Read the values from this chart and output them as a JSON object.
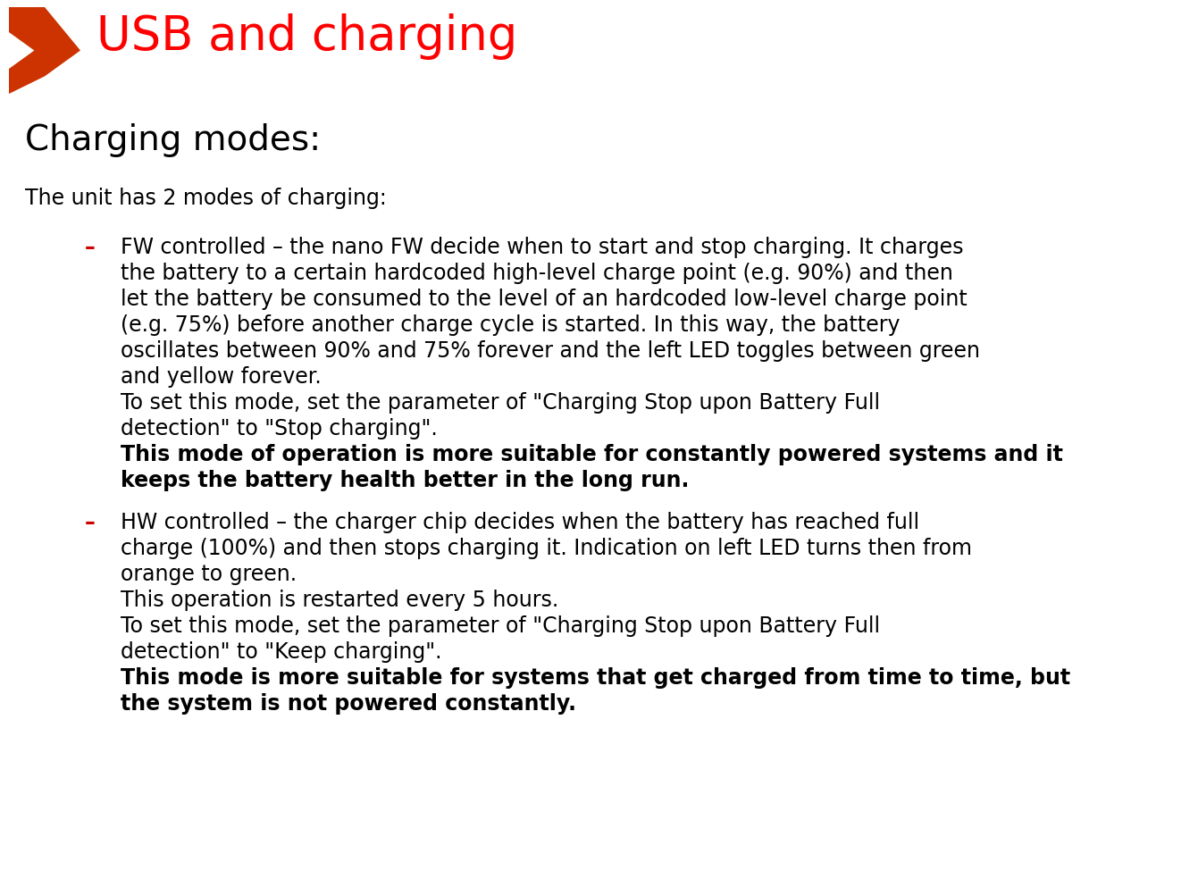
{
  "title": "USB and charging",
  "title_color": "#FF0000",
  "title_fontsize": 38,
  "bg_color": "#FFFFFF",
  "section_title": "Charging modes:",
  "section_title_fontsize": 28,
  "intro_text": "The unit has 2 modes of charging:",
  "intro_fontsize": 17,
  "bullet_color": "#CC0000",
  "bullet_fontsize": 17,
  "text_color": "#000000",
  "bullet1_lines": [
    "FW controlled – the nano FW decide when to start and stop charging. It charges",
    "the battery to a certain hardcoded high-level charge point (e.g. 90%) and then",
    "let the battery be consumed to the level of an hardcoded low-level charge point",
    "(e.g. 75%) before another charge cycle is started. In this way, the battery",
    "oscillates between 90% and 75% forever and the left LED toggles between green",
    "and yellow forever.",
    "To set this mode, set the parameter of \"Charging Stop upon Battery Full",
    "detection\" to \"Stop charging\"."
  ],
  "bullet1_bold": [
    "This mode of operation is more suitable for constantly powered systems and it",
    "keeps the battery health better in the long run."
  ],
  "bullet2_lines": [
    "HW controlled – the charger chip decides when the battery has reached full",
    "charge (100%) and then stops charging it. Indication on left LED turns then from",
    "orange to green.",
    "This operation is restarted every 5 hours.",
    "To set this mode, set the parameter of \"Charging Stop upon Battery Full",
    "detection\" to \"Keep charging\"."
  ],
  "bullet2_bold": [
    "This mode is more suitable for systems that get charged from time to time, but",
    "the system is not powered constantly."
  ],
  "arrow_color": "#CC3300",
  "fig_width": 13.41,
  "fig_height": 9.93,
  "dpi": 100
}
